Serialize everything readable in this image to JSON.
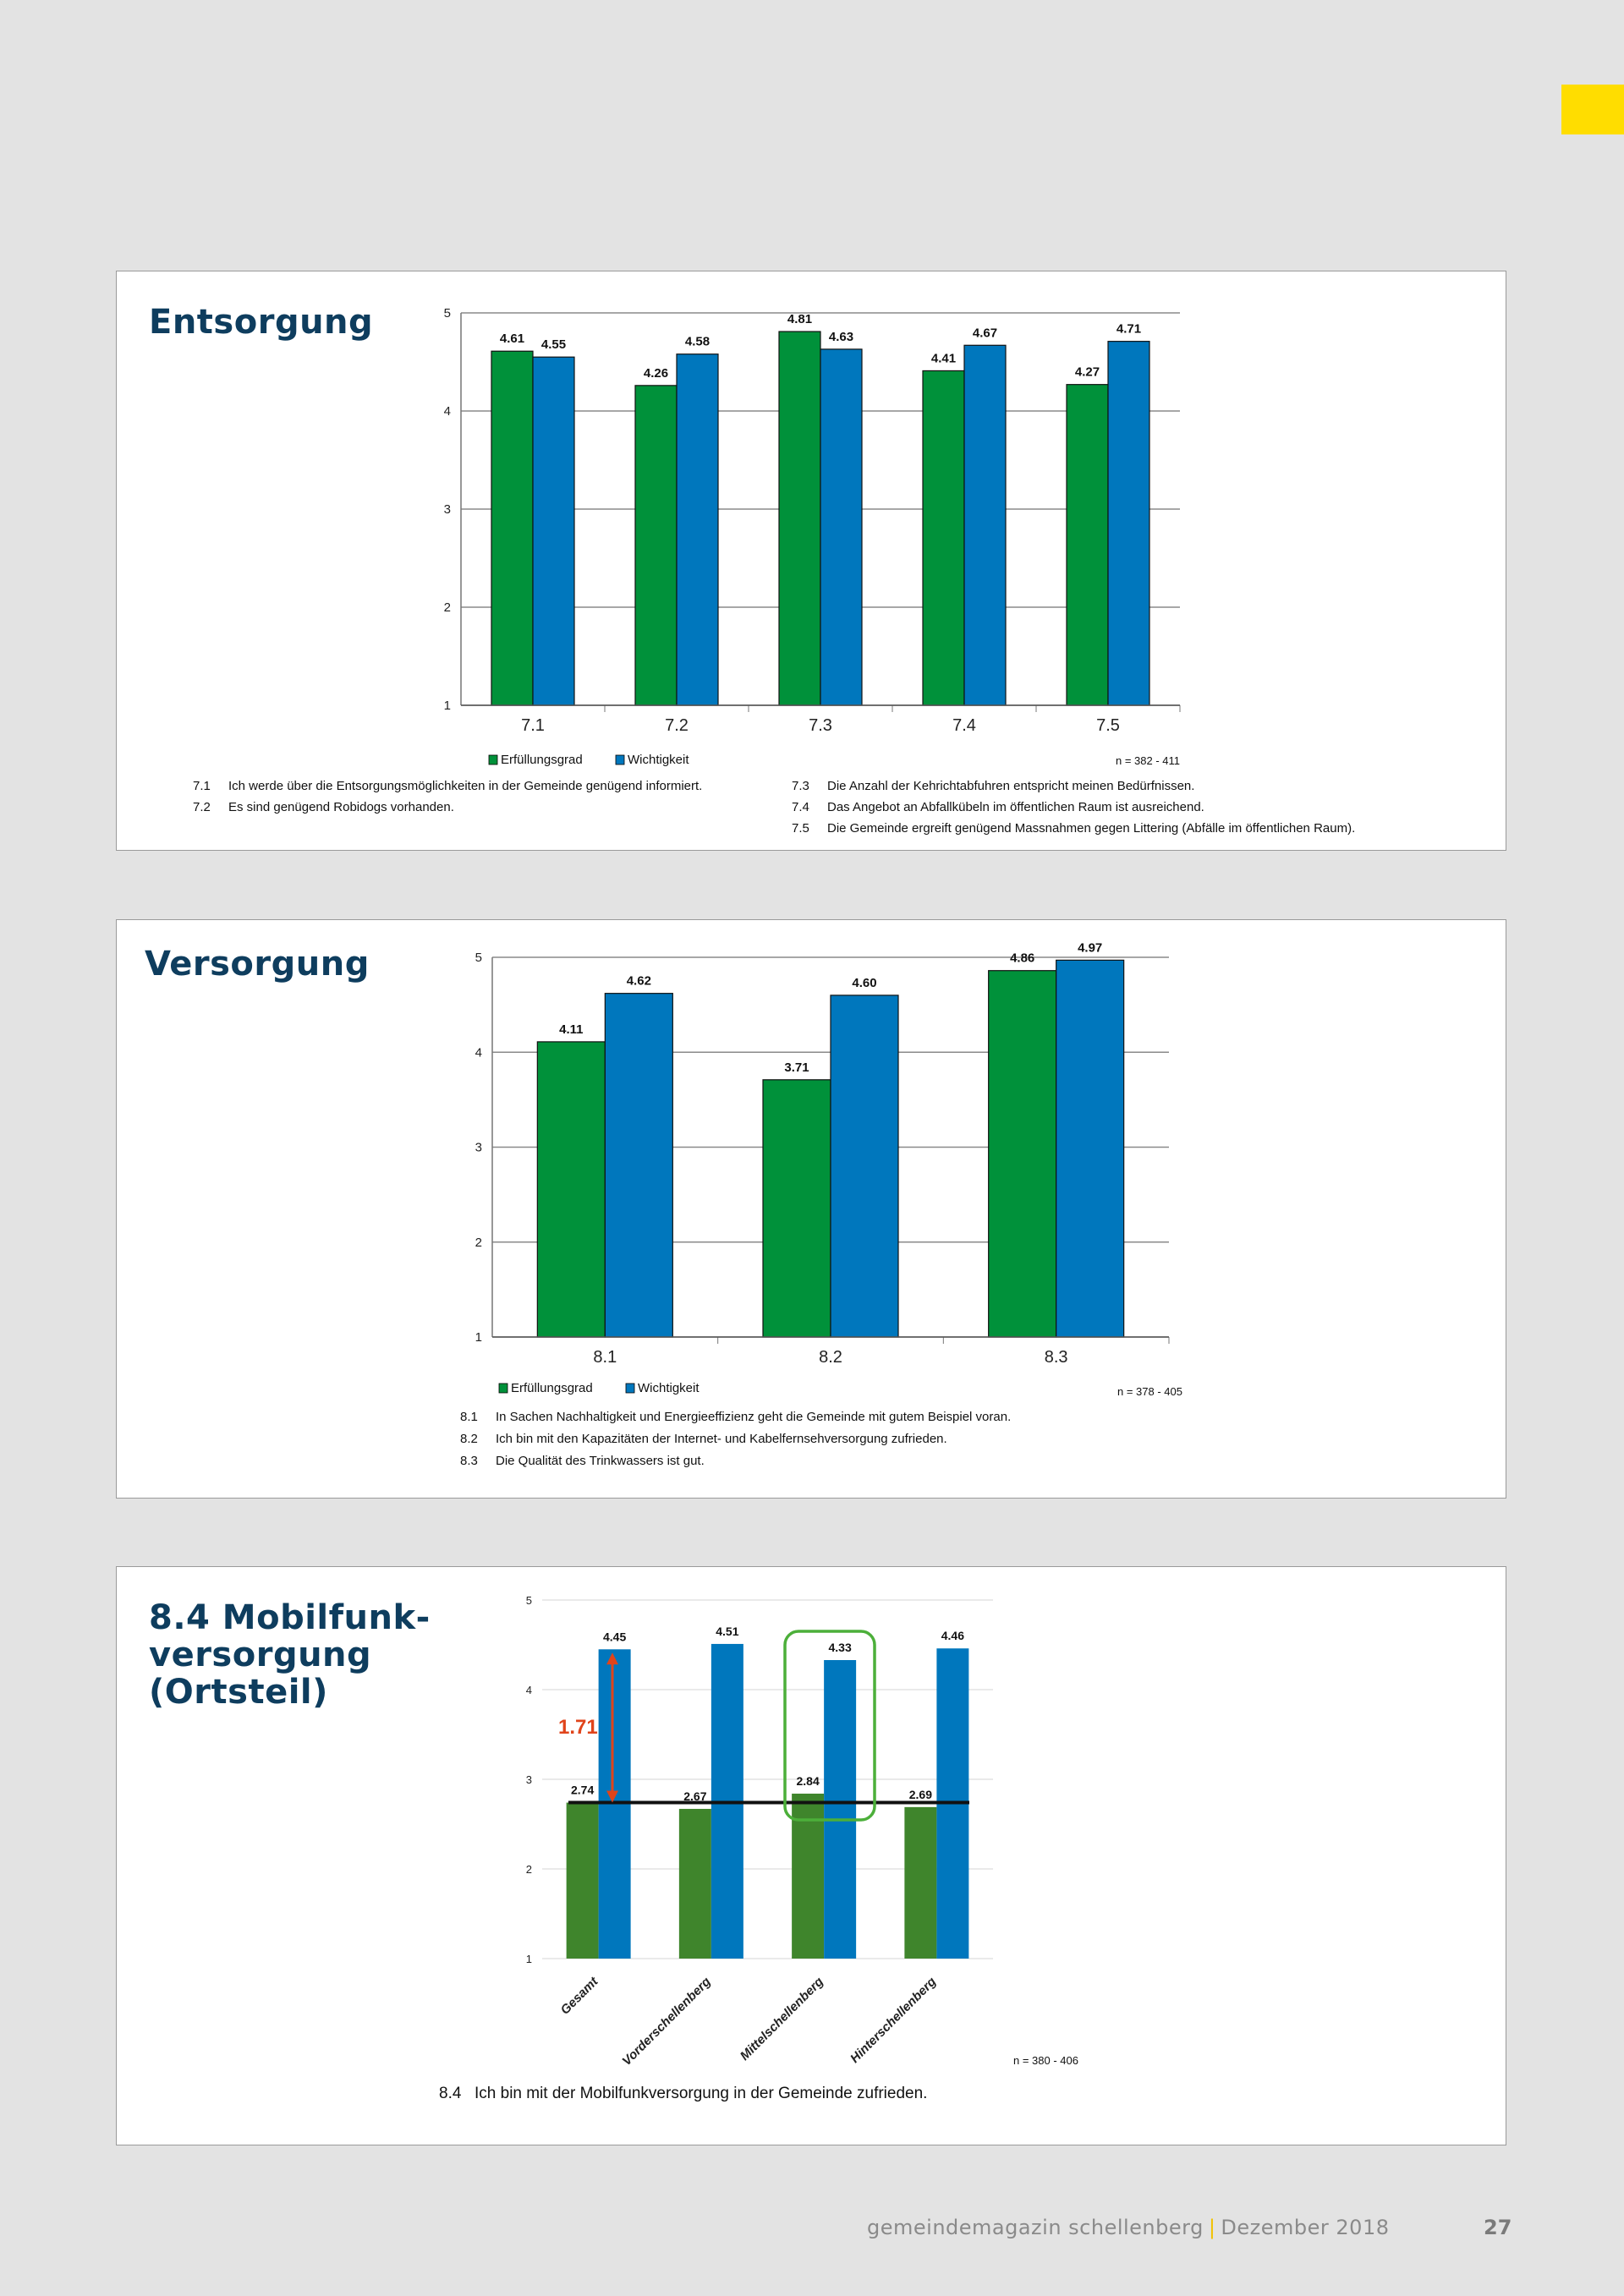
{
  "colors": {
    "accent_tab": "#ffdd00",
    "title": "#0e3d5e",
    "erfuellung": "#00913a",
    "wichtigkeit": "#0077bd",
    "erfuellung_ortsteil": "#3f852c",
    "gap_arrow": "#e0441b",
    "highlight_box": "#4caf3a"
  },
  "sections": [
    {
      "title": "Entsorgung",
      "notes": [
        {
          "num": "7.1",
          "text": "Ich werde über die Entsorgungsmöglichkeiten in der Gemeinde genügend informiert."
        },
        {
          "num": "7.2",
          "text": "Es sind genügend Robidogs vorhanden."
        },
        {
          "num": "7.3",
          "text": "Die Anzahl der Kehrichtabfuhren entspricht meinen Bedürfnissen."
        },
        {
          "num": "7.4",
          "text": "Das Angebot an Abfallkübeln im öffentlichen Raum ist ausreichend."
        },
        {
          "num": "7.5",
          "text": "Die Gemeinde ergreift genügend Massnahmen gegen Littering (Abfälle im öffentlichen Raum)."
        }
      ]
    },
    {
      "title": "Versorgung",
      "notes": [
        {
          "num": "8.1",
          "text": "In Sachen Nachhaltigkeit und Energieeffizienz geht die Gemeinde mit gutem Beispiel voran."
        },
        {
          "num": "8.2",
          "text": "Ich bin mit den Kapazitäten der Internet- und Kabelfernsehversorgung zufrieden."
        },
        {
          "num": "8.3",
          "text": "Die Qualität des Trinkwassers ist gut."
        }
      ]
    },
    {
      "title_lines": [
        "8.4 Mobilfunk-",
        "versorgung",
        "(Ortsteil)"
      ],
      "notes": [
        {
          "num": "8.4",
          "text": "Ich bin mit der Mobilfunkversorgung in der Gemeinde zufrieden."
        }
      ]
    }
  ],
  "chart_data": [
    {
      "type": "bar",
      "categories": [
        "7.1",
        "7.2",
        "7.3",
        "7.4",
        "7.5"
      ],
      "series": [
        {
          "name": "Erfüllungsgrad",
          "values": [
            4.61,
            4.26,
            4.81,
            4.41,
            4.27
          ]
        },
        {
          "name": "Wichtigkeit",
          "values": [
            4.55,
            4.58,
            4.63,
            4.67,
            4.71
          ]
        }
      ],
      "ylim": [
        1,
        5
      ],
      "yticks": [
        "1",
        "2",
        "3",
        "4",
        "5"
      ],
      "grid": true,
      "legend": "bottom",
      "note": "n = 382 - 411"
    },
    {
      "type": "bar",
      "categories": [
        "8.1",
        "8.2",
        "8.3"
      ],
      "series": [
        {
          "name": "Erfüllungsgrad",
          "values": [
            4.11,
            3.71,
            4.86
          ]
        },
        {
          "name": "Wichtigkeit",
          "values": [
            4.62,
            4.6,
            4.97
          ]
        }
      ],
      "ylim": [
        1,
        5
      ],
      "yticks": [
        "1",
        "2",
        "3",
        "4",
        "5"
      ],
      "grid": true,
      "legend": "bottom",
      "note": "n = 378 - 405"
    },
    {
      "type": "bar",
      "categories": [
        "Gesamt",
        "Vorderschellenberg",
        "Mittelschellenberg",
        "Hinterschellenberg"
      ],
      "series": [
        {
          "values": [
            2.74,
            2.67,
            2.84,
            2.69
          ]
        },
        {
          "values": [
            4.45,
            4.51,
            4.33,
            4.46
          ]
        }
      ],
      "ylim": [
        1,
        5
      ],
      "yticks": [
        "1",
        "2",
        "3",
        "4",
        "5"
      ],
      "grid": true,
      "reference_line": 2.74,
      "gap_annotation": "1.71",
      "highlighted_category": "Mittelschellenberg",
      "note": "n = 380 - 406"
    }
  ],
  "footer": {
    "magazine": "gemeindemagazin schellenberg",
    "separator": "|",
    "date": "Dezember 2018",
    "page": "27"
  }
}
